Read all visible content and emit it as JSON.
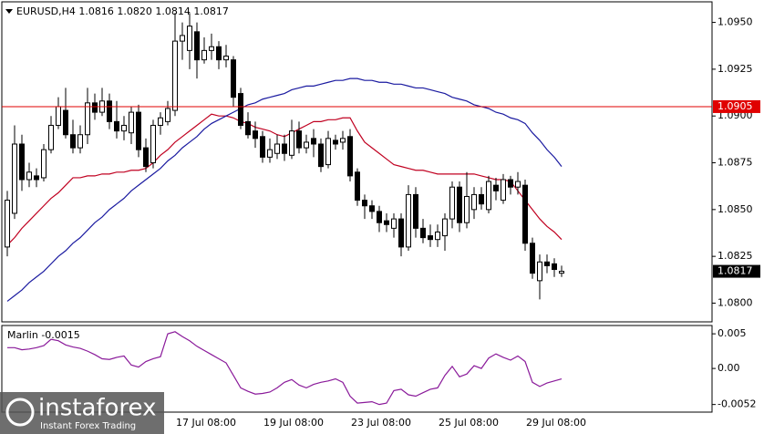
{
  "chart_data": [
    {
      "type": "candlestick",
      "title": "EURUSD,H4  1.0816 1.0820 1.0814 1.0817",
      "categories": [
        null,
        null,
        null,
        null,
        null,
        null,
        null,
        null,
        null,
        null,
        null,
        null,
        null,
        null,
        null,
        null,
        null,
        null,
        null,
        null,
        null,
        null,
        null,
        "17 Jul 08:00",
        null,
        null,
        null,
        null,
        null,
        null,
        null,
        null,
        null,
        null,
        null,
        "19 Jul 08:00",
        null,
        null,
        null,
        null,
        null,
        null,
        null,
        null,
        null,
        null,
        null,
        "23 Jul 08:00",
        null,
        null,
        null,
        null,
        null,
        null,
        null,
        null,
        null,
        null,
        null,
        "25 Jul 08:00",
        null,
        null,
        null,
        null,
        null,
        null,
        null,
        null,
        null,
        null,
        null,
        "29 Jul 08:00",
        null,
        null,
        null,
        null,
        null
      ],
      "open": [
        1.083,
        1.0848,
        1.0885,
        1.0866,
        1.0868,
        1.0867,
        1.0882,
        1.0895,
        1.0903,
        1.089,
        1.0883,
        1.089,
        1.0907,
        1.0902,
        1.0908,
        1.0897,
        1.0892,
        1.0891,
        1.0902,
        1.0883,
        1.0875,
        1.0895,
        1.0897,
        1.0903,
        1.094,
        1.0935,
        1.0945,
        1.093,
        1.0935,
        1.0937,
        1.093,
        1.093,
        1.0912,
        1.0897,
        1.0892,
        1.0889,
        1.0878,
        1.088,
        1.0885,
        1.0879,
        1.0892,
        1.0883,
        1.0888,
        1.0885,
        1.0874,
        1.0887,
        1.0886,
        1.0889,
        1.087,
        1.0855,
        1.0852,
        1.0849,
        1.0844,
        1.084,
        1.0845,
        1.083,
        1.0858,
        1.084,
        1.0836,
        1.0834,
        1.0836,
        1.0845,
        1.0862,
        1.0843,
        1.085,
        1.0858,
        1.085,
        1.0863,
        1.0855,
        1.0866,
        1.0862,
        1.0863,
        1.0832,
        1.0812,
        1.0822,
        1.0821,
        1.0816
      ],
      "high": [
        1.086,
        1.0895,
        1.089,
        1.0875,
        1.0872,
        1.0885,
        1.09,
        1.091,
        1.0915,
        1.0898,
        1.0895,
        1.0915,
        1.0912,
        1.0915,
        1.0912,
        1.0908,
        1.09,
        1.0905,
        1.0906,
        1.0888,
        1.0898,
        1.0902,
        1.0908,
        1.0955,
        1.095,
        1.0955,
        1.095,
        1.0942,
        1.0944,
        1.094,
        1.0938,
        1.0932,
        1.0915,
        1.0902,
        1.0897,
        1.0892,
        1.0888,
        1.089,
        1.089,
        1.0898,
        1.0897,
        1.089,
        1.0893,
        1.0888,
        1.0892,
        1.089,
        1.0892,
        1.0893,
        1.0872,
        1.0858,
        1.0855,
        1.0852,
        1.0848,
        1.0848,
        1.0848,
        1.0863,
        1.0862,
        1.0845,
        1.0842,
        1.0842,
        1.0848,
        1.0865,
        1.0865,
        1.087,
        1.0862,
        1.0862,
        1.0868,
        1.0867,
        1.0869,
        1.0868,
        1.087,
        1.0866,
        1.0835,
        1.0826,
        1.0826,
        1.0824,
        1.082
      ],
      "low": [
        1.0825,
        1.0845,
        1.086,
        1.0862,
        1.0862,
        1.0865,
        1.088,
        1.0893,
        1.0888,
        1.088,
        1.088,
        1.0885,
        1.0898,
        1.09,
        1.0893,
        1.0888,
        1.0887,
        1.0885,
        1.0878,
        1.087,
        1.0872,
        1.089,
        1.0895,
        1.09,
        1.093,
        1.0925,
        1.092,
        1.0928,
        1.093,
        1.0925,
        1.0926,
        1.0905,
        1.0893,
        1.0888,
        1.0883,
        1.0875,
        1.0875,
        1.0877,
        1.0876,
        1.0877,
        1.088,
        1.088,
        1.0878,
        1.087,
        1.0872,
        1.0882,
        1.0882,
        1.0865,
        1.0852,
        1.0845,
        1.0845,
        1.0838,
        1.0838,
        1.0835,
        1.0825,
        1.0828,
        1.0835,
        1.0832,
        1.083,
        1.083,
        1.0828,
        1.084,
        1.0838,
        1.084,
        1.0845,
        1.085,
        1.0848,
        1.0855,
        1.0853,
        1.0858,
        1.0858,
        1.0828,
        1.0813,
        1.0802,
        1.0816,
        1.0814,
        1.0814
      ],
      "close": [
        1.0855,
        1.0885,
        1.0866,
        1.087,
        1.0866,
        1.0882,
        1.0895,
        1.0905,
        1.089,
        1.0883,
        1.089,
        1.0907,
        1.0902,
        1.0908,
        1.0897,
        1.0892,
        1.0895,
        1.0902,
        1.0882,
        1.0873,
        1.0895,
        1.0899,
        1.0904,
        1.094,
        1.0943,
        1.0948,
        1.093,
        1.0935,
        1.0937,
        1.093,
        1.0932,
        1.091,
        1.0895,
        1.089,
        1.0888,
        1.0878,
        1.0882,
        1.0885,
        1.088,
        1.0892,
        1.0883,
        1.0886,
        1.0885,
        1.0873,
        1.0888,
        1.0885,
        1.0888,
        1.0868,
        1.0855,
        1.0852,
        1.0849,
        1.0843,
        1.0842,
        1.0845,
        1.083,
        1.0858,
        1.084,
        1.0835,
        1.0834,
        1.0838,
        1.0845,
        1.0862,
        1.0843,
        1.0857,
        1.0858,
        1.0853,
        1.0865,
        1.086,
        1.0866,
        1.0862,
        1.0865,
        1.0832,
        1.0816,
        1.0822,
        1.082,
        1.0818,
        1.0817
      ],
      "lines": [
        {
          "color": "#c00020",
          "values": [
            1.0831,
            1.0835,
            1.084,
            1.0844,
            1.0848,
            1.0852,
            1.0856,
            1.0859,
            1.0863,
            1.0867,
            1.0867,
            1.0868,
            1.0868,
            1.0869,
            1.0869,
            1.087,
            1.087,
            1.0871,
            1.0871,
            1.0872,
            1.0875,
            1.0879,
            1.0882,
            1.0886,
            1.0889,
            1.0892,
            1.0895,
            1.0898,
            1.0901,
            1.09,
            1.09,
            1.0899,
            1.0897,
            1.0896,
            1.0894,
            1.0893,
            1.0892,
            1.089,
            1.0889,
            1.0891,
            1.0893,
            1.0895,
            1.0897,
            1.0897,
            1.0898,
            1.0898,
            1.0899,
            1.0899,
            1.0892,
            1.0886,
            1.0883,
            1.088,
            1.0877,
            1.0874,
            1.0873,
            1.0872,
            1.0871,
            1.0871,
            1.087,
            1.0869,
            1.0869,
            1.0869,
            1.0869,
            1.0869,
            1.0869,
            1.0868,
            1.0867,
            1.0866,
            1.0866,
            1.0865,
            1.086,
            1.0855,
            1.085,
            1.0845,
            1.0841,
            1.0838,
            1.0834
          ]
        },
        {
          "color": "#1a1aa0",
          "values": [
            1.0801,
            1.0804,
            1.0807,
            1.0811,
            1.0814,
            1.0817,
            1.0821,
            1.0825,
            1.0828,
            1.0832,
            1.0835,
            1.0839,
            1.0843,
            1.0846,
            1.085,
            1.0853,
            1.0856,
            1.086,
            1.0863,
            1.0866,
            1.0869,
            1.0872,
            1.0876,
            1.0879,
            1.0883,
            1.0886,
            1.0889,
            1.0893,
            1.0896,
            1.0898,
            1.09,
            1.0902,
            1.0904,
            1.0906,
            1.0907,
            1.0909,
            1.091,
            1.0911,
            1.0912,
            1.0914,
            1.0915,
            1.0916,
            1.0916,
            1.0917,
            1.0918,
            1.0919,
            1.0919,
            1.092,
            1.092,
            1.0919,
            1.0919,
            1.0918,
            1.0918,
            1.0917,
            1.0917,
            1.0916,
            1.0915,
            1.0915,
            1.0914,
            1.0913,
            1.0912,
            1.091,
            1.0909,
            1.0908,
            1.0906,
            1.0905,
            1.0904,
            1.0902,
            1.0901,
            1.0899,
            1.0898,
            1.0896,
            1.0891,
            1.0887,
            1.0882,
            1.0878,
            1.0873
          ]
        }
      ],
      "hline": {
        "value": 1.0905,
        "color": "#e00000"
      },
      "last_price": 1.0817,
      "ylim": [
        1.079,
        1.0961
      ],
      "yticks": [
        {
          "value": 1.095,
          "label": "1.0950"
        },
        1.0925,
        {
          "value": 1.09,
          "label": "1.0900"
        },
        1.0875,
        {
          "value": 1.085,
          "label": "1.0850"
        },
        1.0825,
        {
          "value": 1.08,
          "label": "1.0800"
        }
      ]
    },
    {
      "type": "line",
      "title": "Marlin -0.0015",
      "series": [
        {
          "color": "#8a1a9a",
          "values": [
            0.003,
            0.003,
            0.0027,
            0.0028,
            0.003,
            0.0033,
            0.0042,
            0.004,
            0.0034,
            0.0031,
            0.0029,
            0.0025,
            0.002,
            0.0014,
            0.0013,
            0.0016,
            0.0018,
            0.0005,
            0.0002,
            0.001,
            0.0014,
            0.0017,
            0.005,
            0.0053,
            0.0046,
            0.004,
            0.0032,
            0.0026,
            0.002,
            0.0014,
            0.0008,
            -0.001,
            -0.0028,
            -0.0033,
            -0.0037,
            -0.0036,
            -0.0034,
            -0.0028,
            -0.002,
            -0.0016,
            -0.0024,
            -0.0028,
            -0.0023,
            -0.002,
            -0.0018,
            -0.0015,
            -0.002,
            -0.004,
            -0.005,
            -0.0049,
            -0.0048,
            -0.0052,
            -0.005,
            -0.0032,
            -0.003,
            -0.0038,
            -0.004,
            -0.0035,
            -0.003,
            -0.0028,
            -0.001,
            0.0003,
            -0.0012,
            -0.0008,
            0.0004,
            0.0,
            0.0015,
            0.0021,
            0.0016,
            0.0012,
            0.0018,
            0.001,
            -0.002,
            -0.0026,
            -0.0021,
            -0.0018,
            -0.0015
          ]
        }
      ],
      "ylim": [
        -0.0063,
        0.0062
      ],
      "yticks": [
        0.005,
        {
          "value": 0,
          "label": "0.00"
        },
        -0.0052
      ]
    }
  ],
  "watermark": {
    "brand": "instaforex",
    "tagline": "Instant Forex Trading"
  }
}
